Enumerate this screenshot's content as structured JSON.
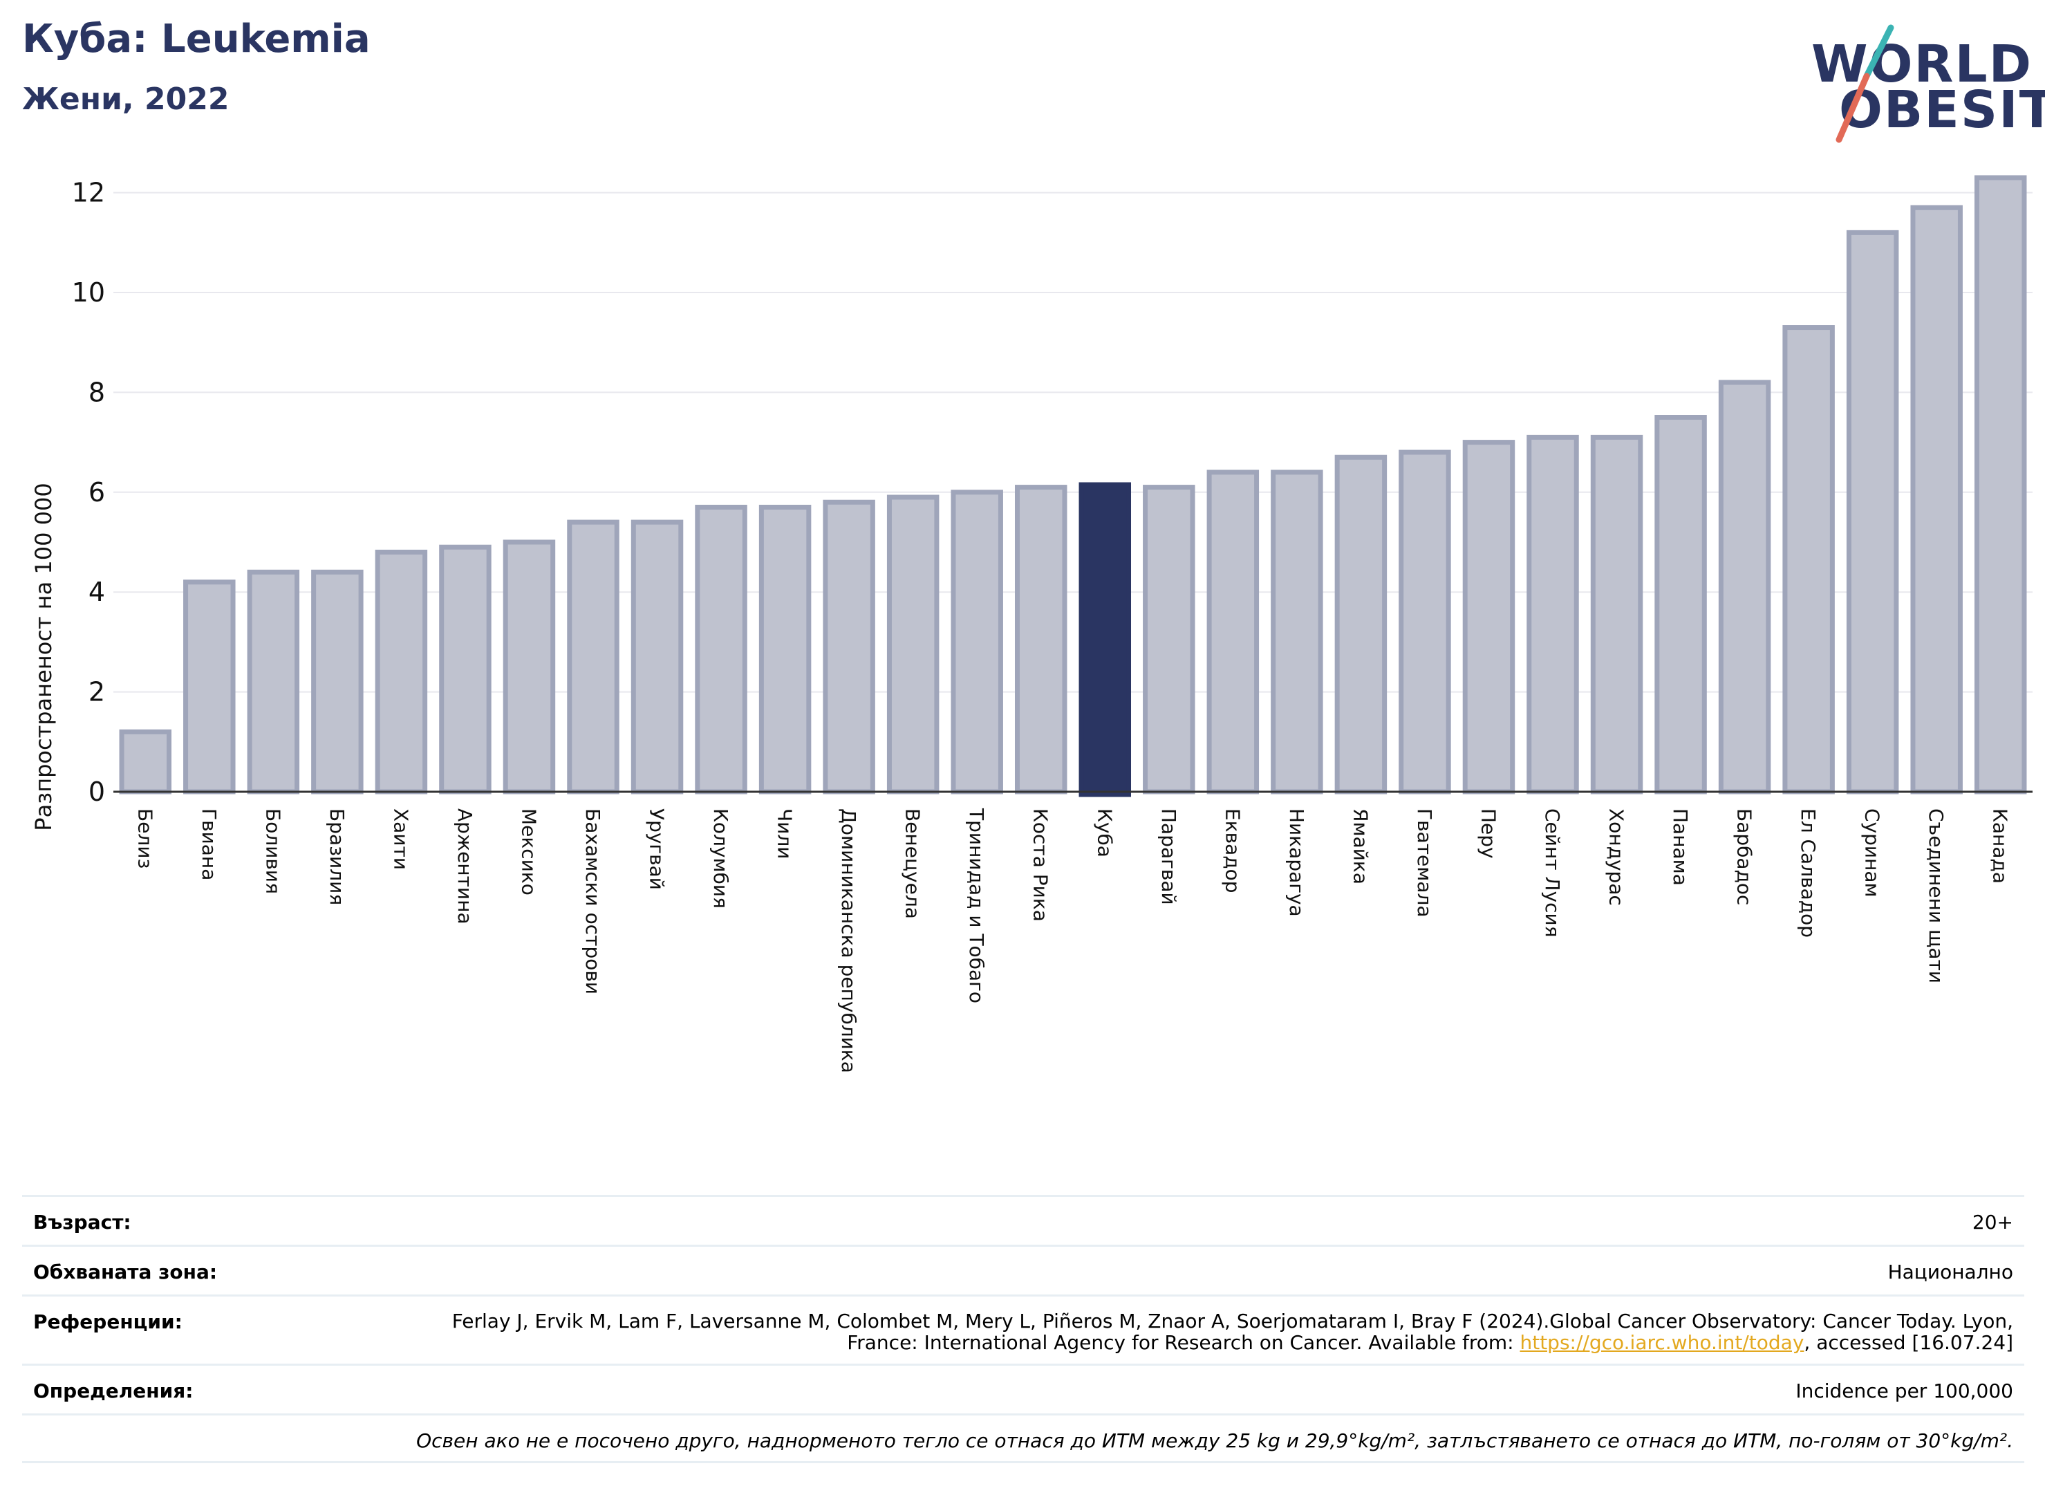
{
  "header": {
    "title": "Куба: Leukemia",
    "subtitle": "Жени, 2022"
  },
  "logo": {
    "line1": "WORLD",
    "line2": "OBESITY",
    "colors": {
      "text": "#2a3562",
      "slash_top": "#3bb3b3",
      "slash_bottom": "#e26a57"
    }
  },
  "colors": {
    "bar": "#bfc2cf",
    "bar_outline": "#9fa5ba",
    "highlight": "#2a3562",
    "title": "#2a3562",
    "link": "#e3a81f"
  },
  "chart_data": {
    "type": "bar",
    "title": "Куба: Leukemia",
    "subtitle": "Жени, 2022",
    "xlabel": "",
    "ylabel": "Разпространеност  на 100 000",
    "ylim": [
      0,
      12.5
    ],
    "yticks": [
      0,
      2,
      4,
      6,
      8,
      10,
      12
    ],
    "grid": true,
    "highlight": "Куба",
    "categories": [
      "Белиз",
      "Гвиана",
      "Боливия",
      "Бразилия",
      "Хаити",
      "Аржентина",
      "Мексико",
      "Бахамски острови",
      "Уругвай",
      "Колумбия",
      "Чили",
      "Доминиканска република",
      "Венецуела",
      "Тринидад и Тобаго",
      "Коста Рика",
      "Куба",
      "Парагвай",
      "Еквадор",
      "Никарагуа",
      "Ямайка",
      "Гватемала",
      "Перу",
      "Сейнт Лусия",
      "Хондурас",
      "Панама",
      "Барбадос",
      "Ел Салвадор",
      "Суринам",
      "Съединени щати",
      "Канада"
    ],
    "values": [
      1.2,
      4.2,
      4.4,
      4.4,
      4.8,
      4.9,
      5.0,
      5.4,
      5.4,
      5.7,
      5.7,
      5.8,
      5.9,
      6.0,
      6.1,
      6.15,
      6.1,
      6.4,
      6.4,
      6.7,
      6.8,
      7.0,
      7.1,
      7.1,
      7.5,
      8.2,
      9.3,
      11.2,
      11.7,
      12.3
    ]
  },
  "info": {
    "age_label": "Възраст:",
    "age_value": "20+",
    "zone_label": "Обхваната зона:",
    "zone_value": "Национално",
    "ref_label": "Референции:",
    "ref_text_1": "Ferlay J, Ervik M, Lam F, Laversanne M, Colombet M, Mery L, Piñeros M, Znaor A, Soerjomataram I, Bray F (2024).Global Cancer Observatory: Cancer Today. Lyon, France: International Agency for Research on Cancer. Available from: ",
    "ref_link": "https://gco.iarc.who.int/today",
    "ref_text_2": ", accessed [16.07.24]",
    "def_label": "Определения:",
    "def_value": "Incidence per 100,000",
    "note": "Освен ако не е посочено друго, наднорменото тегло се отнася до ИТМ между 25 kg и 29,9°kg/m², затлъстяването се отнася до ИТМ, по-голям от 30°kg/m²."
  }
}
